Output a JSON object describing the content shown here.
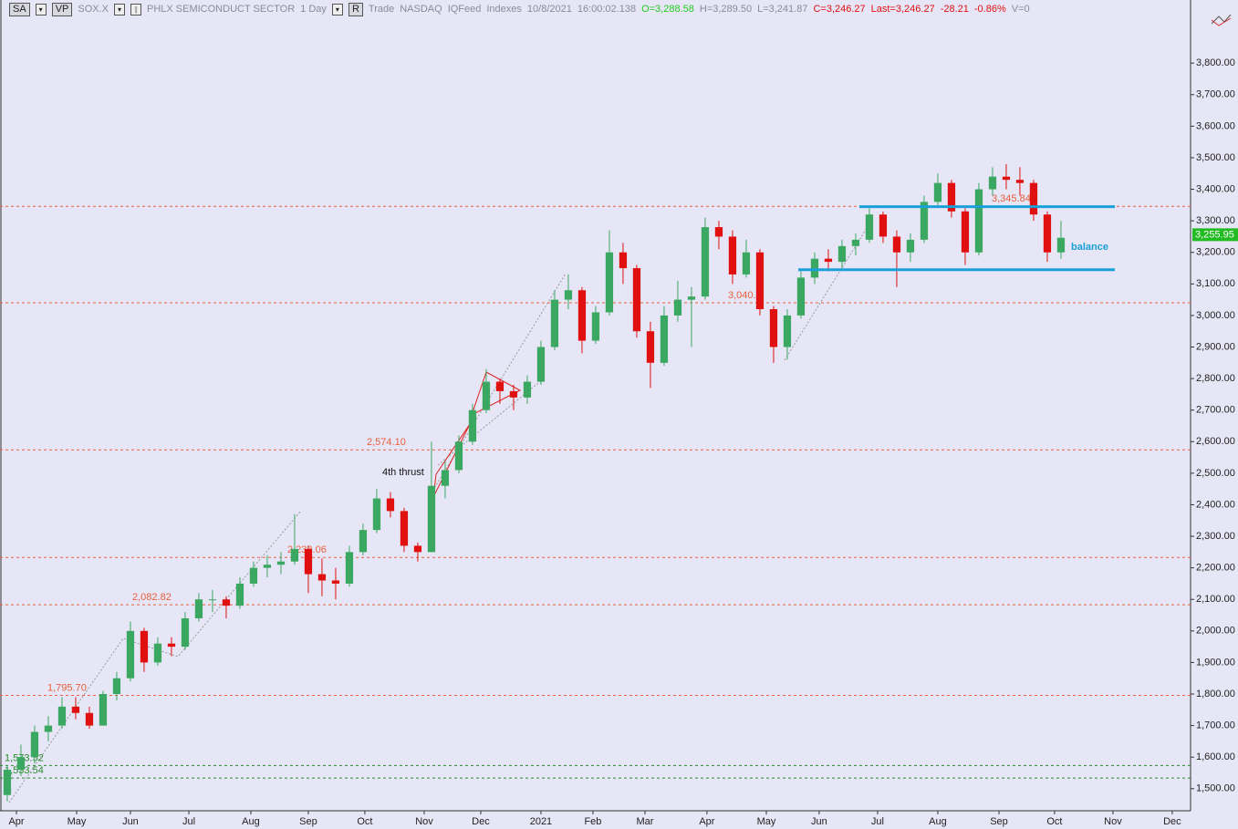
{
  "header": {
    "sa": "SA",
    "vp": "VP",
    "symbol": "SOX.X",
    "name": "PHLX SEMICONDUCT SECTOR",
    "period": "1 Day",
    "r": "R",
    "trade": "Trade",
    "exchange": "NASDAQ",
    "feed": "IQFeed",
    "kind": "Indexes",
    "date": "10/8/2021",
    "time": "16:00:02.138",
    "open": "O=3,288.58",
    "high": "H=3,289.50",
    "low": "L=3,241.87",
    "close": "C=3,246.27",
    "last": "Last=3,246.27",
    "change": "-28.21",
    "change_pct": "-0.86%",
    "volume": "V=0"
  },
  "chart_data": {
    "type": "candlestick",
    "up_color": "#3aa860",
    "down_color": "#e01010",
    "xlim": [
      -0.53,
      86.47
    ],
    "xticks": [
      {
        "value": 0.67,
        "label": "Apr"
      },
      {
        "value": 5.07,
        "label": "May"
      },
      {
        "value": 9,
        "label": "Jun"
      },
      {
        "value": 13.27,
        "label": "Jul"
      },
      {
        "value": 17.8,
        "label": "Aug"
      },
      {
        "value": 22,
        "label": "Sep"
      },
      {
        "value": 26.13,
        "label": "Oct"
      },
      {
        "value": 30.47,
        "label": "Nov"
      },
      {
        "value": 34.6,
        "label": "Dec"
      },
      {
        "value": 39,
        "label": "2021"
      },
      {
        "value": 42.8,
        "label": "Feb"
      },
      {
        "value": 46.6,
        "label": "Mar"
      },
      {
        "value": 51.13,
        "label": "Apr"
      },
      {
        "value": 55.47,
        "label": "May"
      },
      {
        "value": 59.33,
        "label": "Jun"
      },
      {
        "value": 63.6,
        "label": "Jul"
      },
      {
        "value": 68,
        "label": "Aug"
      },
      {
        "value": 72.47,
        "label": "Sep"
      },
      {
        "value": 76.53,
        "label": "Oct"
      },
      {
        "value": 80.8,
        "label": "Nov"
      },
      {
        "value": 85.13,
        "label": "Dec"
      }
    ],
    "ylim": [
      1430,
      4000
    ],
    "yticks": [
      {
        "value": 1500,
        "label": "1,500.00"
      },
      {
        "value": 1600,
        "label": "1,600.00"
      },
      {
        "value": 1700,
        "label": "1,700.00"
      },
      {
        "value": 1800,
        "label": "1,800.00"
      },
      {
        "value": 1900,
        "label": "1,900.00"
      },
      {
        "value": 2000,
        "label": "2,000.00"
      },
      {
        "value": 2100,
        "label": "2,100.00"
      },
      {
        "value": 2200,
        "label": "2,200.00"
      },
      {
        "value": 2300,
        "label": "2,300.00"
      },
      {
        "value": 2400,
        "label": "2,400.00"
      },
      {
        "value": 2500,
        "label": "2,500.00"
      },
      {
        "value": 2600,
        "label": "2,600.00"
      },
      {
        "value": 2700,
        "label": "2,700.00"
      },
      {
        "value": 2800,
        "label": "2,800.00"
      },
      {
        "value": 2900,
        "label": "2,900.00"
      },
      {
        "value": 3000,
        "label": "3,000.00"
      },
      {
        "value": 3100,
        "label": "3,100.00"
      },
      {
        "value": 3200,
        "label": "3,200.00"
      },
      {
        "value": 3300,
        "label": "3,300.00"
      },
      {
        "value": 3400,
        "label": "3,400.00"
      },
      {
        "value": 3500,
        "label": "3,500.00"
      },
      {
        "value": 3600,
        "label": "3,600.00"
      },
      {
        "value": 3700,
        "label": "3,700.00"
      },
      {
        "value": 3800,
        "label": "3,800.00"
      }
    ],
    "ohlc": [
      [
        1480,
        1570,
        1460,
        1560
      ],
      [
        1560,
        1640,
        1540,
        1600
      ],
      [
        1600,
        1700,
        1580,
        1680
      ],
      [
        1680,
        1730,
        1650,
        1700
      ],
      [
        1700,
        1790,
        1690,
        1760
      ],
      [
        1760,
        1790,
        1720,
        1740
      ],
      [
        1740,
        1760,
        1690,
        1700
      ],
      [
        1700,
        1810,
        1700,
        1800
      ],
      [
        1800,
        1870,
        1780,
        1850
      ],
      [
        1850,
        2030,
        1840,
        2000
      ],
      [
        2000,
        2010,
        1870,
        1900
      ],
      [
        1900,
        1980,
        1890,
        1960
      ],
      [
        1960,
        1980,
        1920,
        1950
      ],
      [
        1950,
        2060,
        1940,
        2040
      ],
      [
        2040,
        2120,
        2030,
        2100
      ],
      [
        2100,
        2130,
        2060,
        2100
      ],
      [
        2100,
        2110,
        2040,
        2080
      ],
      [
        2080,
        2170,
        2070,
        2150
      ],
      [
        2150,
        2220,
        2140,
        2200
      ],
      [
        2200,
        2240,
        2170,
        2210
      ],
      [
        2210,
        2250,
        2180,
        2220
      ],
      [
        2220,
        2370,
        2210,
        2260
      ],
      [
        2260,
        2270,
        2120,
        2180
      ],
      [
        2180,
        2230,
        2110,
        2160
      ],
      [
        2160,
        2200,
        2100,
        2150
      ],
      [
        2150,
        2270,
        2140,
        2250
      ],
      [
        2250,
        2340,
        2240,
        2320
      ],
      [
        2320,
        2450,
        2310,
        2420
      ],
      [
        2420,
        2440,
        2360,
        2380
      ],
      [
        2380,
        2390,
        2250,
        2270
      ],
      [
        2270,
        2280,
        2220,
        2250
      ],
      [
        2250,
        2600,
        2250,
        2460
      ],
      [
        2460,
        2540,
        2420,
        2510
      ],
      [
        2510,
        2620,
        2500,
        2600
      ],
      [
        2600,
        2720,
        2590,
        2700
      ],
      [
        2700,
        2830,
        2690,
        2790
      ],
      [
        2790,
        2800,
        2720,
        2760
      ],
      [
        2760,
        2780,
        2700,
        2740
      ],
      [
        2740,
        2810,
        2720,
        2790
      ],
      [
        2790,
        2920,
        2780,
        2900
      ],
      [
        2900,
        3080,
        2890,
        3050
      ],
      [
        3050,
        3130,
        3020,
        3080
      ],
      [
        3080,
        3090,
        2880,
        2920
      ],
      [
        2920,
        3030,
        2910,
        3010
      ],
      [
        3010,
        3270,
        3000,
        3200
      ],
      [
        3200,
        3230,
        3100,
        3150
      ],
      [
        3150,
        3160,
        2930,
        2950
      ],
      [
        2950,
        2980,
        2770,
        2850
      ],
      [
        2850,
        3030,
        2840,
        3000
      ],
      [
        3000,
        3110,
        2980,
        3050
      ],
      [
        3050,
        3090,
        2900,
        3060
      ],
      [
        3060,
        3310,
        3050,
        3280
      ],
      [
        3280,
        3300,
        3210,
        3250
      ],
      [
        3250,
        3270,
        3100,
        3130
      ],
      [
        3130,
        3240,
        3120,
        3200
      ],
      [
        3200,
        3210,
        3000,
        3020
      ],
      [
        3020,
        3030,
        2850,
        2900
      ],
      [
        2900,
        3020,
        2860,
        3000
      ],
      [
        3000,
        3140,
        2990,
        3120
      ],
      [
        3120,
        3200,
        3100,
        3180
      ],
      [
        3180,
        3210,
        3140,
        3170
      ],
      [
        3170,
        3240,
        3150,
        3220
      ],
      [
        3220,
        3260,
        3190,
        3240
      ],
      [
        3240,
        3340,
        3230,
        3320
      ],
      [
        3320,
        3330,
        3230,
        3250
      ],
      [
        3250,
        3270,
        3090,
        3200
      ],
      [
        3200,
        3260,
        3170,
        3240
      ],
      [
        3240,
        3380,
        3230,
        3360
      ],
      [
        3360,
        3450,
        3350,
        3420
      ],
      [
        3420,
        3430,
        3310,
        3330
      ],
      [
        3330,
        3340,
        3160,
        3200
      ],
      [
        3200,
        3420,
        3190,
        3400
      ],
      [
        3400,
        3470,
        3380,
        3440
      ],
      [
        3440,
        3480,
        3400,
        3430
      ],
      [
        3430,
        3470,
        3380,
        3420
      ],
      [
        3420,
        3430,
        3300,
        3320
      ],
      [
        3320,
        3330,
        3170,
        3200
      ],
      [
        3200,
        3300,
        3180,
        3246.27
      ]
    ],
    "levels": [
      {
        "value": 1573.52,
        "label": "1,573.52",
        "color": "#2a8a2a"
      },
      {
        "value": 1533.54,
        "label": "1,533.54",
        "color": "#2a8a2a"
      },
      {
        "value": 1795.7,
        "label": "1,795.70",
        "color": "#e8603c"
      },
      {
        "value": 2082.82,
        "label": "2,082.82",
        "color": "#e8603c"
      },
      {
        "value": 2233.06,
        "label": "2,233.06",
        "color": "#e8603c"
      },
      {
        "value": 2574.1,
        "label": "2,574.10",
        "color": "#e8603c"
      },
      {
        "value": 3040.1,
        "label": "3,040.1",
        "color": "#e8603c"
      },
      {
        "value": 3345.84,
        "label": "3,345.84",
        "color": "#e8603c"
      }
    ],
    "balance": {
      "label": "balance",
      "top": 3345,
      "bottom": 3145,
      "color": "#1aa0d8"
    },
    "annotation": "4th thrust",
    "price_tag": {
      "value": 3255.95,
      "label": "3,255.95",
      "color": "#22bb22"
    }
  }
}
